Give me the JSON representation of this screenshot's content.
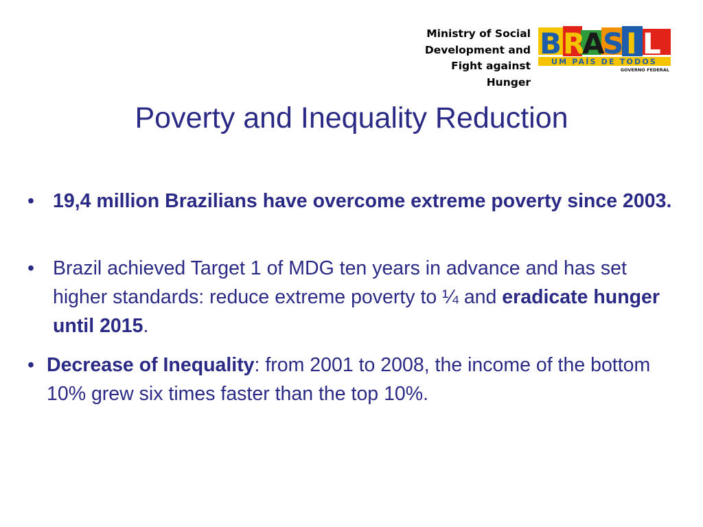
{
  "header": {
    "ministry_lines": [
      "Ministry of Social",
      "Development and",
      "Fight against",
      "Hunger"
    ],
    "logo": {
      "letters": [
        "B",
        "R",
        "A",
        "S",
        "I",
        "L"
      ],
      "tagline": "UM PAÍS DE TODOS",
      "sub": "GOVERNO FEDERAL",
      "colors": {
        "blue": "#1d5cab",
        "red": "#e2231a",
        "yellow": "#f5c400",
        "green": "#2e9b3b",
        "orange": "#f39200",
        "black": "#1a1a1a",
        "tagline_bg": "#f5c400"
      }
    }
  },
  "title": "Poverty and Inequality Reduction",
  "bullets": {
    "b1": {
      "text": "19,4 million Brazilians have overcome extreme poverty since 2003."
    },
    "b2": {
      "text_a": "Brazil achieved Target 1 of MDG ten years in advance and has set higher standards: reduce extreme poverty to ¼ and ",
      "text_bold": "eradicate hunger until 2015",
      "text_b": "."
    },
    "b3": {
      "text_bold": "Decrease of Inequality",
      "text_a": ": from 2001 to 2008, the income of the bottom 10% grew six times faster than the top 10%."
    },
    "bullet_glyph": "•"
  },
  "colors": {
    "text": "#2a2a86",
    "background": "#ffffff"
  }
}
